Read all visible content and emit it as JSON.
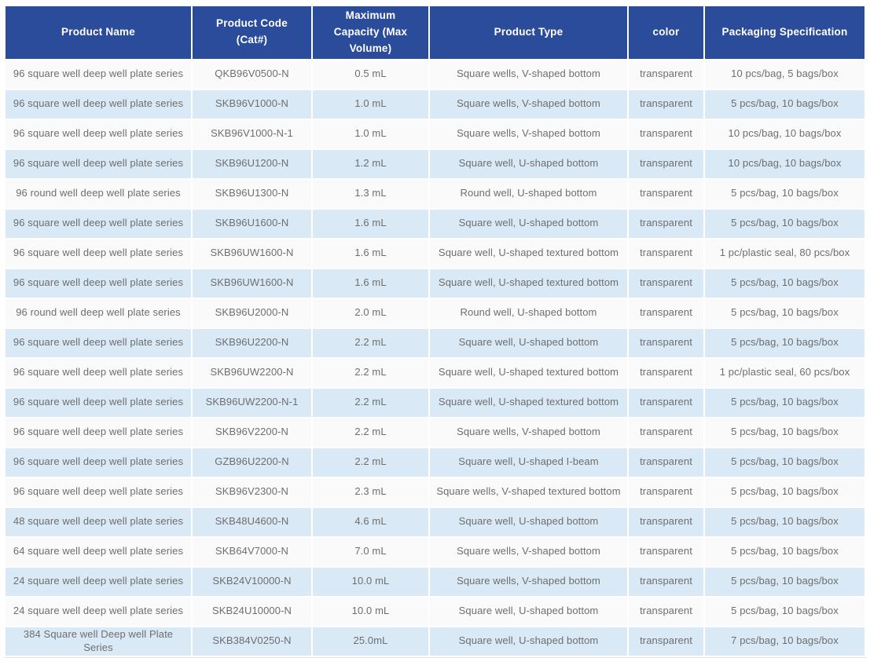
{
  "colors": {
    "header_bg": "#2b4b9b",
    "header_text": "#ffffff",
    "row_bg": "#fafafa",
    "row_alt_bg": "#d9e9f6",
    "body_text": "#6e6e6e"
  },
  "table": {
    "columns": [
      {
        "key": "name",
        "label": "Product Name"
      },
      {
        "key": "code",
        "label": "Product Code (Cat#)"
      },
      {
        "key": "capacity",
        "label": "Maximum Capacity (Max Volume)"
      },
      {
        "key": "type",
        "label": "Product Type"
      },
      {
        "key": "color",
        "label": "color"
      },
      {
        "key": "packaging",
        "label": "Packaging  Specification"
      }
    ],
    "rows": [
      [
        "96 square well deep well plate series",
        "QKB96V0500-N",
        "0.5 mL",
        "Square wells, V-shaped bottom",
        "transparent",
        "10 pcs/bag, 5 bags/box"
      ],
      [
        "96 square well deep well plate series",
        "SKB96V1000-N",
        "1.0 mL",
        "Square wells, V-shaped bottom",
        "transparent",
        "5 pcs/bag, 10 bags/box"
      ],
      [
        "96 square well deep well plate series",
        "SKB96V1000-N-1",
        "1.0 mL",
        "Square wells, V-shaped bottom",
        "transparent",
        "10 pcs/bag, 10 bags/box"
      ],
      [
        "96 square well deep well plate series",
        "SKB96U1200-N",
        "1.2 mL",
        "Square well, U-shaped bottom",
        "transparent",
        "10 pcs/bag, 10 bags/box"
      ],
      [
        "96 round well deep well plate series",
        "SKB96U1300-N",
        "1.3 mL",
        "Round well, U-shaped bottom",
        "transparent",
        "5 pcs/bag, 10 bags/box"
      ],
      [
        "96 square well deep well plate series",
        "SKB96U1600-N",
        "1.6 mL",
        "Square well, U-shaped bottom",
        "transparent",
        "5 pcs/bag, 10 bags/box"
      ],
      [
        "96 square well deep well plate series",
        "SKB96UW1600-N",
        "1.6 mL",
        "Square well, U-shaped textured bottom",
        "transparent",
        "1 pc/plastic seal, 80 pcs/box"
      ],
      [
        "96 square well deep well plate series",
        "SKB96UW1600-N",
        "1.6 mL",
        "Square well, U-shaped textured bottom",
        "transparent",
        "5 pcs/bag, 10 bags/box"
      ],
      [
        "96 round well deep well plate series",
        "SKB96U2000-N",
        "2.0 mL",
        "Round well, U-shaped bottom",
        "transparent",
        "5 pcs/bag, 10 bags/box"
      ],
      [
        "96 square well deep well plate series",
        "SKB96U2200-N",
        "2.2 mL",
        "Square well, U-shaped bottom",
        "transparent",
        "5 pcs/bag, 10 bags/box"
      ],
      [
        "96 square well deep well plate series",
        "SKB96UW2200-N",
        "2.2 mL",
        "Square well, U-shaped textured bottom",
        "transparent",
        "1 pc/plastic seal, 60 pcs/box"
      ],
      [
        "96 square well deep well plate series",
        "SKB96UW2200-N-1",
        "2.2 mL",
        "Square well, U-shaped textured bottom",
        "transparent",
        "5 pcs/bag, 10 bags/box"
      ],
      [
        "96 square well deep well plate series",
        "SKB96V2200-N",
        "2.2 mL",
        "Square wells, V-shaped bottom",
        "transparent",
        "5 pcs/bag, 10 bags/box"
      ],
      [
        "96 square well deep well plate series",
        "GZB96U2200-N",
        "2.2 mL",
        "Square well, U-shaped I-beam",
        "transparent",
        "5 pcs/bag, 10 bags/box"
      ],
      [
        "96 square well deep well plate series",
        "SKB96V2300-N",
        "2.3 mL",
        "Square wells, V-shaped textured bottom",
        "transparent",
        "5 pcs/bag, 10 bags/box"
      ],
      [
        "48 square well deep well plate series",
        "SKB48U4600-N",
        "4.6 mL",
        "Square well, U-shaped bottom",
        "transparent",
        "5 pcs/bag, 10 bags/box"
      ],
      [
        "64 square well deep well plate series",
        "SKB64V7000-N",
        "7.0 mL",
        "Square wells, V-shaped bottom",
        "transparent",
        "5 pcs/bag, 10 bags/box"
      ],
      [
        "24 square well deep well plate series",
        "SKB24V10000-N",
        "10.0 mL",
        "Square wells, V-shaped bottom",
        "transparent",
        "5 pcs/bag, 10 bags/box"
      ],
      [
        "24 square well deep well plate series",
        "SKB24U10000-N",
        "10.0 mL",
        "Square well, U-shaped bottom",
        "transparent",
        "5 pcs/bag, 10 bags/box"
      ],
      [
        "384 Square well Deep well Plate Series",
        "SKB384V0250-N",
        "25.0mL",
        "Square well, U-shaped bottom",
        "transparent",
        "7 pcs/bag, 10 bags/box"
      ]
    ]
  }
}
